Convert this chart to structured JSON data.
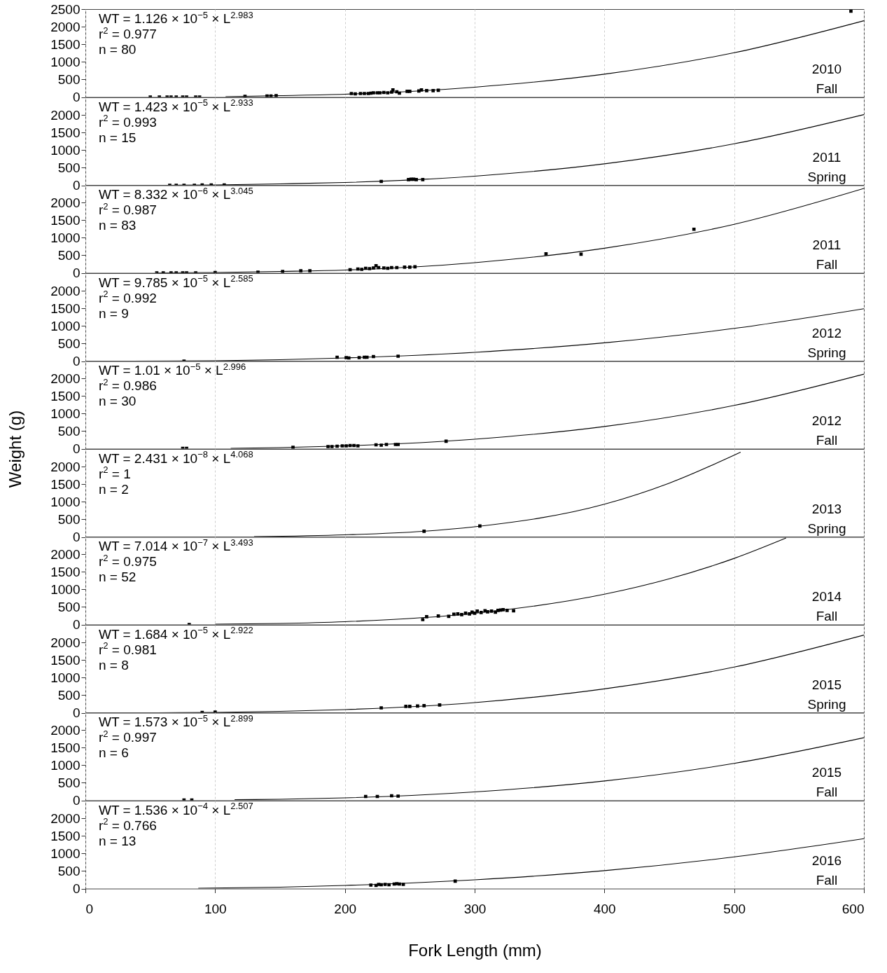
{
  "chart_data": [
    {
      "type": "scatter",
      "annotations": [
        "WT = 1.126 × 10$^{−5}$ × L$^{2.983}$",
        "r$^{2}$ = 0.977",
        "n = 80",
        "2010",
        "Fall"
      ],
      "xlim": [
        0,
        600
      ],
      "xticks": [
        0,
        100,
        200,
        300,
        400,
        500,
        600
      ],
      "ylim": [
        0,
        2500
      ],
      "yticks": [
        0,
        500,
        1000,
        1500,
        2000,
        2500
      ],
      "grid": "x",
      "tick_labels": "y",
      "series": [
        {
          "marker": "square",
          "color": "#000000",
          "x": [
            50,
            57,
            63,
            66,
            70,
            75,
            78,
            85,
            88,
            123,
            140,
            143,
            147,
            205,
            208,
            212,
            215,
            218,
            220,
            222,
            225,
            227,
            230,
            233,
            236,
            237,
            240,
            242,
            248,
            250,
            257,
            259,
            263,
            268,
            272,
            590
          ],
          "values": [
            0,
            0,
            0,
            0,
            0,
            0,
            0,
            0,
            0,
            20,
            30,
            30,
            40,
            100,
            90,
            100,
            100,
            100,
            110,
            120,
            120,
            120,
            130,
            120,
            140,
            200,
            150,
            110,
            160,
            160,
            170,
            200,
            180,
            180,
            190,
            2440
          ]
        },
        {
          "type": "line",
          "color": "#000000",
          "x": [
            108,
            150,
            200,
            300,
            400,
            500,
            600
          ],
          "values": [
            10,
            40,
            80,
            280,
            650,
            1260,
            2170
          ]
        }
      ]
    },
    {
      "type": "scatter",
      "annotations": [
        "WT = 1.423 × 10$^{−5}$ × L$^{2.933}$",
        "r$^{2}$ = 0.993",
        "n = 15",
        "2011",
        "Spring"
      ],
      "xlim": [
        0,
        600
      ],
      "xticks": [
        0,
        100,
        200,
        300,
        400,
        500,
        600
      ],
      "ylim": [
        0,
        2500
      ],
      "yticks": [
        0,
        500,
        1000,
        1500,
        2000
      ],
      "grid": "x",
      "tick_labels": "y",
      "series": [
        {
          "marker": "square",
          "color": "#000000",
          "x": [
            65,
            70,
            76,
            84,
            90,
            97,
            107,
            228,
            249,
            251,
            253,
            255,
            260
          ],
          "values": [
            0,
            0,
            0,
            0,
            10,
            10,
            10,
            110,
            160,
            170,
            170,
            160,
            160
          ]
        },
        {
          "type": "line",
          "color": "#000000",
          "x": [
            65,
            100,
            150,
            200,
            300,
            400,
            500,
            600
          ],
          "values": [
            0,
            10,
            40,
            80,
            260,
            610,
            1180,
            2010
          ]
        }
      ]
    },
    {
      "type": "scatter",
      "annotations": [
        "WT = 8.332 × 10$^{−6}$ × L$^{3.045}$",
        "r$^{2}$ = 0.987",
        "n = 83",
        "2011",
        "Fall"
      ],
      "xlim": [
        0,
        600
      ],
      "xticks": [
        0,
        100,
        200,
        300,
        400,
        500,
        600
      ],
      "ylim": [
        0,
        2500
      ],
      "yticks": [
        0,
        500,
        1000,
        1500,
        2000
      ],
      "grid": "x",
      "tick_labels": "y",
      "series": [
        {
          "marker": "square",
          "color": "#000000",
          "x": [
            55,
            60,
            66,
            70,
            75,
            78,
            85,
            100,
            133,
            152,
            166,
            173,
            204,
            210,
            213,
            216,
            219,
            222,
            224,
            226,
            230,
            233,
            236,
            240,
            246,
            250,
            254,
            355,
            382,
            469
          ],
          "values": [
            0,
            0,
            0,
            0,
            0,
            0,
            0,
            10,
            20,
            40,
            60,
            60,
            90,
            110,
            100,
            130,
            120,
            140,
            200,
            150,
            140,
            130,
            150,
            150,
            160,
            160,
            170,
            540,
            530,
            1240
          ]
        },
        {
          "type": "line",
          "color": "#000000",
          "x": [
            55,
            100,
            150,
            200,
            300,
            400,
            500,
            600
          ],
          "values": [
            0,
            10,
            40,
            80,
            290,
            700,
            1380,
            2400
          ]
        }
      ]
    },
    {
      "type": "scatter",
      "annotations": [
        "WT = 9.785 × 10$^{−5}$ × L$^{2.585}$",
        "r$^{2}$ = 0.992",
        "n = 9",
        "2012",
        "Spring"
      ],
      "xlim": [
        0,
        600
      ],
      "xticks": [
        0,
        100,
        200,
        300,
        400,
        500,
        600
      ],
      "ylim": [
        0,
        2500
      ],
      "yticks": [
        0,
        500,
        1000,
        1500,
        2000
      ],
      "grid": "x",
      "tick_labels": "y",
      "series": [
        {
          "marker": "square",
          "color": "#000000",
          "x": [
            76,
            194,
            201,
            203,
            211,
            215,
            217,
            222,
            241
          ],
          "values": [
            0,
            110,
            100,
            90,
            100,
            110,
            110,
            130,
            140
          ]
        },
        {
          "type": "line",
          "color": "#000000",
          "x": [
            35,
            100,
            150,
            200,
            300,
            400,
            500,
            600
          ],
          "values": [
            0,
            10,
            40,
            90,
            250,
            520,
            930,
            1490
          ]
        }
      ]
    },
    {
      "type": "scatter",
      "annotations": [
        "WT = 1.01 × 10$^{−5}$ × L$^{2.996}$",
        "r$^{2}$ = 0.986",
        "n = 30",
        "2012",
        "Fall"
      ],
      "xlim": [
        0,
        600
      ],
      "xticks": [
        0,
        100,
        200,
        300,
        400,
        500,
        600
      ],
      "ylim": [
        0,
        2500
      ],
      "yticks": [
        0,
        500,
        1000,
        1500,
        2000
      ],
      "grid": "x",
      "tick_labels": "y",
      "ylabel": "Weight (g)",
      "series": [
        {
          "marker": "square",
          "color": "#000000",
          "x": [
            75,
            78,
            160,
            187,
            190,
            194,
            198,
            201,
            204,
            207,
            210,
            224,
            228,
            232,
            239,
            241,
            278
          ],
          "values": [
            10,
            10,
            40,
            60,
            60,
            70,
            80,
            80,
            90,
            90,
            80,
            110,
            100,
            120,
            120,
            120,
            210
          ]
        },
        {
          "type": "line",
          "color": "#000000",
          "x": [
            112,
            150,
            200,
            300,
            400,
            500,
            600
          ],
          "values": [
            10,
            30,
            80,
            270,
            630,
            1230,
            2120
          ]
        }
      ]
    },
    {
      "type": "scatter",
      "annotations": [
        "WT = 2.431 × 10$^{−8}$ × L$^{4.068}$",
        "r$^{2}$ = 1",
        "n = 2",
        "2013",
        "Spring"
      ],
      "xlim": [
        0,
        600
      ],
      "xticks": [
        0,
        100,
        200,
        300,
        400,
        500,
        600
      ],
      "ylim": [
        0,
        2500
      ],
      "yticks": [
        0,
        500,
        1000,
        1500,
        2000
      ],
      "grid": "x",
      "tick_labels": "y",
      "series": [
        {
          "marker": "square",
          "color": "#000000",
          "x": [
            261,
            304
          ],
          "values": [
            160,
            310
          ]
        },
        {
          "type": "line",
          "color": "#000000",
          "x": [
            130,
            200,
            260,
            300,
            400,
            450,
            505
          ],
          "values": [
            10,
            60,
            160,
            290,
            930,
            1530,
            2410
          ]
        }
      ]
    },
    {
      "type": "scatter",
      "annotations": [
        "WT = 7.014 × 10$^{−7}$ × L$^{3.493}$",
        "r$^{2}$ = 0.975",
        "n = 52",
        "2014",
        "Fall"
      ],
      "xlim": [
        0,
        600
      ],
      "xticks": [
        0,
        100,
        200,
        300,
        400,
        500,
        600
      ],
      "ylim": [
        0,
        2500
      ],
      "yticks": [
        0,
        500,
        1000,
        1500,
        2000
      ],
      "grid": "x",
      "tick_labels": "y",
      "series": [
        {
          "marker": "square",
          "color": "#000000",
          "x": [
            80,
            260,
            263,
            272,
            280,
            284,
            287,
            290,
            293,
            296,
            298,
            300,
            302,
            305,
            308,
            310,
            313,
            316,
            318,
            320,
            322,
            325,
            330
          ],
          "values": [
            0,
            140,
            220,
            240,
            230,
            290,
            300,
            280,
            320,
            300,
            350,
            320,
            380,
            340,
            390,
            360,
            380,
            350,
            400,
            410,
            420,
            400,
            390
          ]
        },
        {
          "type": "line",
          "color": "#000000",
          "x": [
            100,
            150,
            200,
            300,
            400,
            450,
            500,
            540
          ],
          "values": [
            10,
            30,
            80,
            320,
            860,
            1300,
            1880,
            2460
          ]
        }
      ]
    },
    {
      "type": "scatter",
      "annotations": [
        "WT = 1.684 × 10$^{−5}$ × L$^{2.922}$",
        "r$^{2}$ = 0.981",
        "n = 8",
        "2015",
        "Spring"
      ],
      "xlim": [
        0,
        600
      ],
      "xticks": [
        0,
        100,
        200,
        300,
        400,
        500,
        600
      ],
      "ylim": [
        0,
        2500
      ],
      "yticks": [
        0,
        500,
        1000,
        1500,
        2000
      ],
      "grid": "x",
      "tick_labels": "y",
      "series": [
        {
          "marker": "square",
          "color": "#000000",
          "x": [
            90,
            100,
            228,
            247,
            250,
            256,
            261,
            273
          ],
          "values": [
            10,
            20,
            140,
            180,
            180,
            190,
            200,
            220
          ]
        },
        {
          "type": "line",
          "color": "#000000",
          "x": [
            55,
            100,
            150,
            200,
            300,
            400,
            500,
            600
          ],
          "values": [
            0,
            10,
            40,
            90,
            290,
            680,
            1300,
            2210
          ]
        }
      ]
    },
    {
      "type": "scatter",
      "annotations": [
        "WT = 1.573 × 10$^{−5}$ × L$^{2.899}$",
        "r$^{2}$ = 0.997",
        "n = 6",
        "2015",
        "Fall"
      ],
      "xlim": [
        0,
        600
      ],
      "xticks": [
        0,
        100,
        200,
        300,
        400,
        500,
        600
      ],
      "ylim": [
        0,
        2500
      ],
      "yticks": [
        0,
        500,
        1000,
        1500,
        2000
      ],
      "grid": "x",
      "tick_labels": "y",
      "series": [
        {
          "marker": "square",
          "color": "#000000",
          "x": [
            76,
            82,
            216,
            225,
            236,
            241
          ],
          "values": [
            10,
            10,
            110,
            110,
            130,
            120
          ]
        },
        {
          "type": "line",
          "color": "#000000",
          "x": [
            115,
            150,
            200,
            300,
            400,
            500,
            600
          ],
          "values": [
            20,
            30,
            70,
            240,
            550,
            1050,
            1780
          ]
        }
      ]
    },
    {
      "type": "scatter",
      "annotations": [
        "WT = 1.536 × 10$^{−4}$ × L$^{2.507}$",
        "r$^{2}$ = 0.766",
        "n = 13",
        "2016",
        "Fall"
      ],
      "xlim": [
        0,
        600
      ],
      "xticks": [
        0,
        100,
        200,
        300,
        400,
        500,
        600
      ],
      "ylim": [
        0,
        2500
      ],
      "yticks": [
        0,
        500,
        1000,
        1500,
        2000
      ],
      "grid": "x",
      "xlabel": "Fork Length (mm)",
      "series": [
        {
          "marker": "square",
          "color": "#000000",
          "x": [
            220,
            224,
            226,
            228,
            231,
            234,
            238,
            240,
            242,
            245,
            285
          ],
          "values": [
            100,
            90,
            120,
            110,
            120,
            110,
            130,
            140,
            130,
            120,
            210
          ]
        },
        {
          "type": "line",
          "color": "#000000",
          "x": [
            87,
            150,
            200,
            300,
            400,
            500,
            600
          ],
          "values": [
            10,
            40,
            90,
            250,
            510,
            900,
            1420
          ]
        }
      ]
    }
  ]
}
